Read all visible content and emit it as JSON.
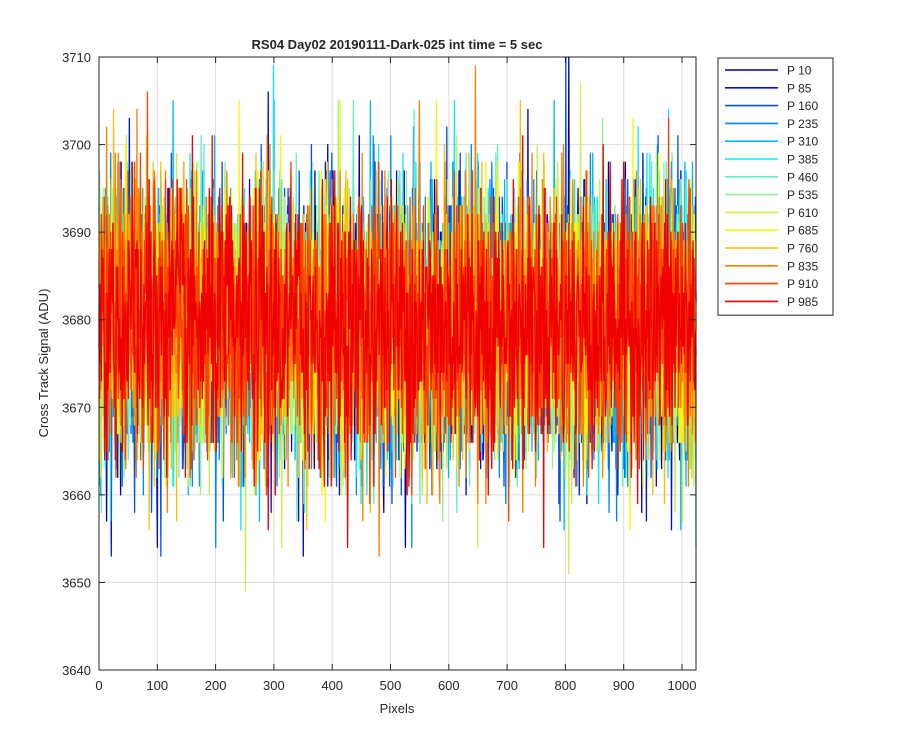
{
  "chart_data": {
    "type": "line",
    "title": "RS04 Day02 20190111-Dark-025 int time = 5 sec",
    "xlabel": "Pixels",
    "ylabel": "Cross Track Signal (ADU)",
    "xlim": [
      0,
      1024
    ],
    "ylim": [
      3640,
      3710
    ],
    "xticks": [
      0,
      100,
      200,
      300,
      400,
      500,
      600,
      700,
      800,
      900,
      1000
    ],
    "yticks": [
      3640,
      3650,
      3660,
      3670,
      3680,
      3690,
      3700,
      3710
    ],
    "grid": true,
    "legend_placement": "outside-right",
    "n_points": 1024,
    "noise": {
      "mean": 3679.5,
      "std": 7.6,
      "min": 3649,
      "max": 3710
    },
    "series": [
      {
        "name": "P 10",
        "color": "#0000a8"
      },
      {
        "name": "P 85",
        "color": "#0010d8"
      },
      {
        "name": "P 160",
        "color": "#0050f0"
      },
      {
        "name": "P 235",
        "color": "#0088f8"
      },
      {
        "name": "P 310",
        "color": "#00b8f8"
      },
      {
        "name": "P 385",
        "color": "#10e8f0"
      },
      {
        "name": "P 460",
        "color": "#60f0c8"
      },
      {
        "name": "P 535",
        "color": "#98f090"
      },
      {
        "name": "P 610",
        "color": "#c8f048"
      },
      {
        "name": "P 685",
        "color": "#f8f800"
      },
      {
        "name": "P 760",
        "color": "#f8c000"
      },
      {
        "name": "P 835",
        "color": "#f88000"
      },
      {
        "name": "P 910",
        "color": "#f84000"
      },
      {
        "name": "P 985",
        "color": "#f00000"
      }
    ],
    "spikes": [
      {
        "series": 0,
        "x": 13,
        "y": 3657
      },
      {
        "series": 0,
        "x": 805,
        "y": 3710
      },
      {
        "series": 1,
        "x": 100,
        "y": 3654
      },
      {
        "series": 1,
        "x": 290,
        "y": 3706
      },
      {
        "series": 2,
        "x": 800,
        "y": 3710
      },
      {
        "series": 3,
        "x": 470,
        "y": 3701
      },
      {
        "series": 4,
        "x": 780,
        "y": 3705
      },
      {
        "series": 5,
        "x": 299,
        "y": 3709
      },
      {
        "series": 5,
        "x": 1024,
        "y": 3654
      },
      {
        "series": 6,
        "x": 540,
        "y": 3704
      },
      {
        "series": 7,
        "x": 410,
        "y": 3705
      },
      {
        "series": 8,
        "x": 251,
        "y": 3649
      },
      {
        "series": 8,
        "x": 805,
        "y": 3651
      },
      {
        "series": 8,
        "x": 825,
        "y": 3707
      },
      {
        "series": 9,
        "x": 915,
        "y": 3703
      },
      {
        "series": 10,
        "x": 25,
        "y": 3704
      },
      {
        "series": 11,
        "x": 645,
        "y": 3709
      },
      {
        "series": 11,
        "x": 480,
        "y": 3653
      },
      {
        "series": 12,
        "x": 83,
        "y": 3706
      },
      {
        "series": 13,
        "x": 290,
        "y": 3656
      }
    ]
  }
}
